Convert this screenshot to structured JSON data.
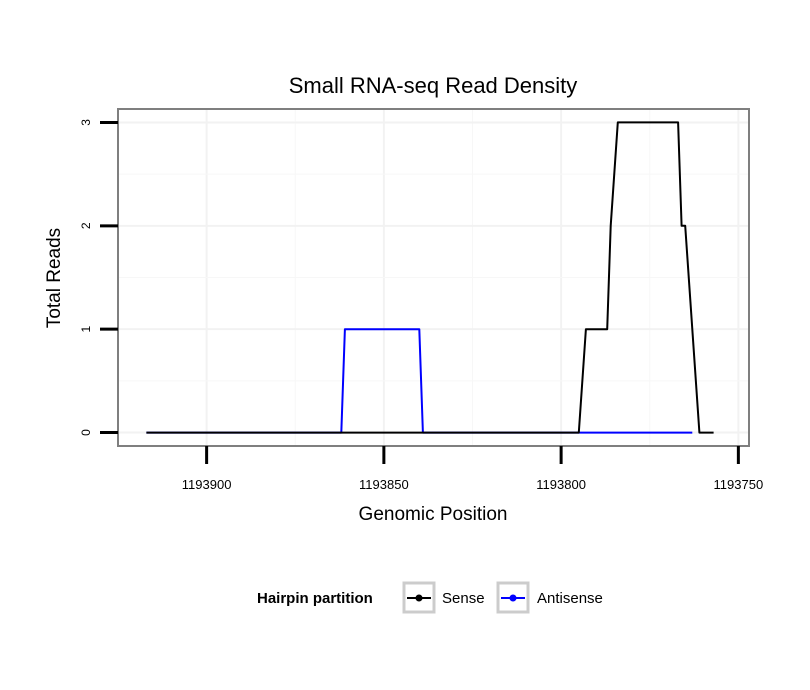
{
  "chart_data": {
    "type": "line",
    "title": "Small RNA-seq Read Density",
    "xlabel": "Genomic Position",
    "ylabel": "Total Reads",
    "x_reversed": true,
    "xlim": [
      1193925,
      1193747
    ],
    "ylim": [
      -0.13,
      3.13
    ],
    "x_ticks": [
      1193900,
      1193850,
      1193800,
      1193750
    ],
    "x_tick_labels": [
      "1193900",
      "1193850",
      "1193800",
      "1193750"
    ],
    "y_ticks": [
      0,
      1,
      2,
      3
    ],
    "y_tick_labels": [
      "0",
      "1",
      "2",
      "3"
    ],
    "grid": true,
    "legend": {
      "title": "Hairpin partition",
      "placement": "bottom",
      "entries": [
        "Sense",
        "Antisense"
      ]
    },
    "series": [
      {
        "name": "Sense",
        "color": "#000000",
        "x": [
          1193917,
          1193795,
          1193793,
          1193787,
          1193786,
          1193784,
          1193767,
          1193766,
          1193765,
          1193761,
          1193757
        ],
        "y": [
          0,
          0,
          1,
          1,
          2,
          3,
          3,
          2,
          2,
          0,
          0
        ]
      },
      {
        "name": "Antisense",
        "color": "#0000ff",
        "x": [
          1193917,
          1193862,
          1193861,
          1193840,
          1193839,
          1193795,
          1193763
        ],
        "y": [
          0,
          0,
          1,
          1,
          0,
          0,
          0
        ]
      }
    ]
  }
}
